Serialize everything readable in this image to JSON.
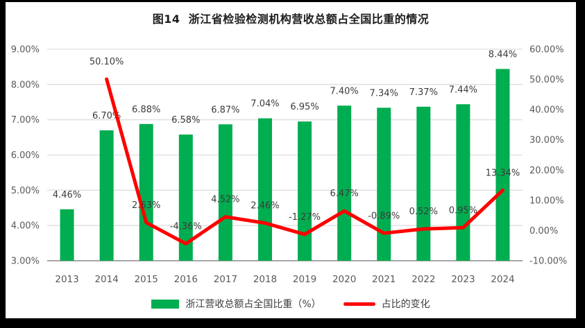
{
  "title": "图14  浙江省检验检测机构营收总额占全国比重的情况",
  "colors": {
    "bar": "#00AD50",
    "line": "#FE0000",
    "grid": "#DEDEDE",
    "axis_line": "#A6A6A6",
    "data_label": "#3b3b3b",
    "tick_label": "#595959",
    "panel_bg": "#FFFFFF",
    "frame": "#000000"
  },
  "chart_data": {
    "type": "combo-bar-line",
    "title": "图14  浙江省检验检测机构营收总额占全国比重的情况",
    "categories": [
      "2013",
      "2014",
      "2015",
      "2016",
      "2017",
      "2018",
      "2019",
      "2020",
      "2021",
      "2022",
      "2023",
      "2024"
    ],
    "series": [
      {
        "name": "浙江营收总额占全国比重（%）",
        "type": "bar",
        "axis": "left",
        "values": [
          4.46,
          6.7,
          6.88,
          6.58,
          6.87,
          7.04,
          6.95,
          7.4,
          7.34,
          7.37,
          7.44,
          8.44
        ],
        "labels": [
          "4.46%",
          "6.70%",
          "6.88%",
          "6.58%",
          "6.87%",
          "7.04%",
          "6.95%",
          "7.40%",
          "7.34%",
          "7.37%",
          "7.44%",
          "8.44%"
        ]
      },
      {
        "name": "占比的变化",
        "type": "line",
        "axis": "right",
        "values": [
          null,
          50.1,
          2.63,
          -4.36,
          4.52,
          2.46,
          -1.27,
          6.47,
          -0.89,
          0.52,
          0.95,
          13.34
        ],
        "labels": [
          null,
          "50.10%",
          "2.63%",
          "-4.36%",
          "4.52%",
          "2.46%",
          "-1.27%",
          "6.47%",
          "-0.89%",
          "0.52%",
          "0.95%",
          "13.34%"
        ]
      }
    ],
    "left_axis": {
      "min": 3,
      "max": 9,
      "tick_labels": [
        "9.00%",
        "8.00%",
        "7.00%",
        "6.00%",
        "5.00%",
        "4.00%",
        "3.00%"
      ]
    },
    "right_axis": {
      "min": -10,
      "max": 60,
      "tick_labels": [
        "60.00%",
        "50.00%",
        "40.00%",
        "30.00%",
        "20.00%",
        "10.00%",
        "0.00%",
        "-10.00%"
      ]
    },
    "grid": true,
    "legend_position": "bottom"
  },
  "legend": {
    "bar_label": "浙江营收总额占全国比重（%）",
    "line_label": "占比的变化"
  }
}
